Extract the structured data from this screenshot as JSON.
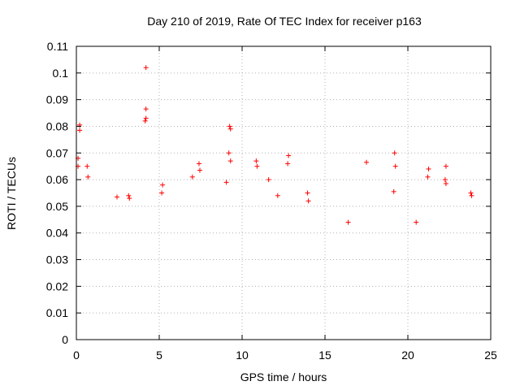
{
  "chart_data": {
    "type": "scatter",
    "title": "Day 210 of 2019, Rate Of TEC Index for receiver p163",
    "xlabel": "GPS time / hours",
    "ylabel": "ROTI / TECUs",
    "xlim": [
      0,
      25
    ],
    "ylim": [
      0,
      0.11
    ],
    "xticks": [
      "0",
      "5",
      "10",
      "15",
      "20",
      "25"
    ],
    "yticks": [
      "0",
      "0.01",
      "0.02",
      "0.03",
      "0.04",
      "0.05",
      "0.06",
      "0.07",
      "0.08",
      "0.09",
      "0.1",
      "0.11"
    ],
    "grid": true,
    "marker": "+",
    "marker_color": "#ff0000",
    "series": [
      {
        "x": [
          4.2,
          4.2,
          4.2,
          4.15,
          0.2,
          0.2,
          0.1,
          0.1,
          9.25,
          9.3,
          9.2,
          9.3,
          12.8,
          12.75,
          10.85,
          10.9,
          7.4,
          7.45,
          17.5,
          19.2,
          19.25,
          19.15,
          22.3,
          21.25,
          21.2,
          22.25,
          22.3,
          0.65,
          0.7,
          5.2,
          5.15,
          3.15,
          3.2,
          2.45,
          13.95,
          14.0,
          16.4,
          20.5,
          23.8,
          23.85,
          7.0,
          9.05,
          11.6,
          12.15
        ],
        "y": [
          0.102,
          0.0865,
          0.083,
          0.082,
          0.0805,
          0.0785,
          0.068,
          0.065,
          0.08,
          0.079,
          0.07,
          0.067,
          0.069,
          0.066,
          0.067,
          0.065,
          0.066,
          0.0635,
          0.0665,
          0.07,
          0.065,
          0.0555,
          0.065,
          0.064,
          0.061,
          0.06,
          0.0585,
          0.065,
          0.061,
          0.058,
          0.055,
          0.054,
          0.053,
          0.0535,
          0.055,
          0.052,
          0.044,
          0.044,
          0.055,
          0.054,
          0.061,
          0.059,
          0.06,
          0.054
        ]
      }
    ]
  }
}
